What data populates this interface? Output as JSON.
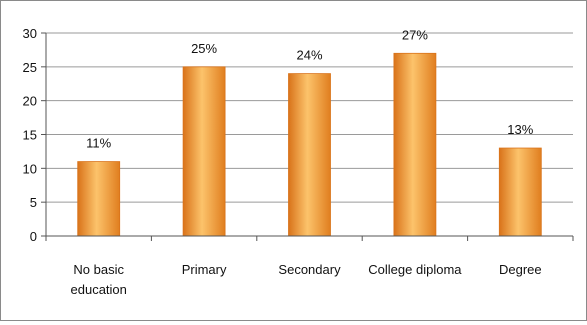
{
  "chart_data": {
    "type": "bar",
    "title": "",
    "xlabel": "",
    "ylabel": "",
    "categories": [
      [
        "No basic",
        "education"
      ],
      [
        "Primary"
      ],
      [
        "Secondary"
      ],
      [
        "College diploma"
      ],
      [
        "Degree"
      ]
    ],
    "values": [
      11,
      25,
      24,
      27,
      13
    ],
    "data_labels": [
      "11%",
      "25%",
      "24%",
      "27%",
      "13%"
    ],
    "ylim": [
      0,
      30
    ],
    "yticks": [
      "0",
      "5",
      "10",
      "15",
      "20",
      "25",
      "30"
    ],
    "grid": true,
    "legend": "none",
    "colors": {
      "bar": "#F59A2E",
      "bar_dark": "#D9731A",
      "bar_light": "#FCC36B",
      "grid": "#9a9a9a",
      "axis": "#555555"
    }
  }
}
